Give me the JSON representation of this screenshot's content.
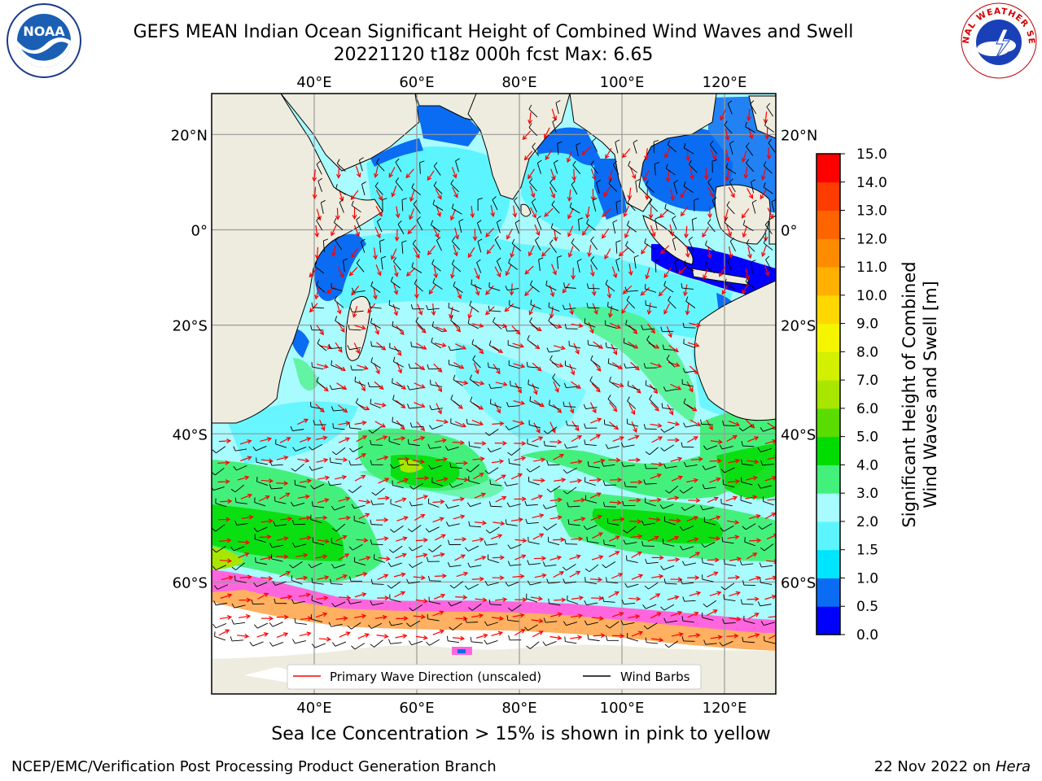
{
  "header": {
    "title_line1": "GEFS MEAN Indian Ocean Significant Height of Combined Wind Waves and Swell",
    "title_line2": "20221120 t18z 000h fcst   Max: 6.65"
  },
  "logos": {
    "left_logo_text": "NOAA",
    "right_logo_text": "NATIONAL WEATHER SERVICE"
  },
  "map": {
    "lon_ticks": [
      "40°E",
      "60°E",
      "80°E",
      "100°E",
      "120°E"
    ],
    "lat_ticks": [
      "20°N",
      "0°",
      "20°S",
      "40°S",
      "60°S"
    ],
    "lon_values": [
      40,
      60,
      80,
      100,
      120
    ],
    "lat_values": [
      20,
      0,
      -20,
      -40,
      -60
    ],
    "extent": {
      "lon_min": 20,
      "lon_max": 130,
      "lat_min": -70,
      "lat_max": 28
    },
    "legend": {
      "wave_label": "Primary Wave Direction (unscaled)",
      "wind_label": "Wind Barbs"
    }
  },
  "colorbar": {
    "label_line1": "Significant Height of Combined",
    "label_line2": "Wind Waves and Swell [m]",
    "ticks": [
      "0.0",
      "0.5",
      "1.0",
      "1.5",
      "2.0",
      "3.0",
      "4.0",
      "5.0",
      "6.0",
      "7.0",
      "8.0",
      "9.0",
      "10.0",
      "11.0",
      "12.0",
      "13.0",
      "14.0",
      "15.0"
    ],
    "colors": [
      "#0000ff",
      "#0a6cf2",
      "#00e5ff",
      "#5cf5ff",
      "#a8fbff",
      "#44f07c",
      "#00dc00",
      "#5adc00",
      "#a8e600",
      "#d2f000",
      "#f5f500",
      "#ffd700",
      "#ffb000",
      "#ff8c00",
      "#ff6400",
      "#ff3c00",
      "#ff0000"
    ]
  },
  "colors": {
    "land": "#eeecde",
    "ice_pink": "#ff66dd",
    "ice_orange": "#ffb060",
    "wave_arrow": "#ff0000"
  },
  "footer": {
    "ice_note": "Sea Ice Concentration > 15% is shown in pink to yellow",
    "credit_left": "NCEP/EMC/Verification Post Processing Product Generation Branch",
    "credit_date": "22 Nov 2022 on",
    "credit_host": "Hera"
  }
}
